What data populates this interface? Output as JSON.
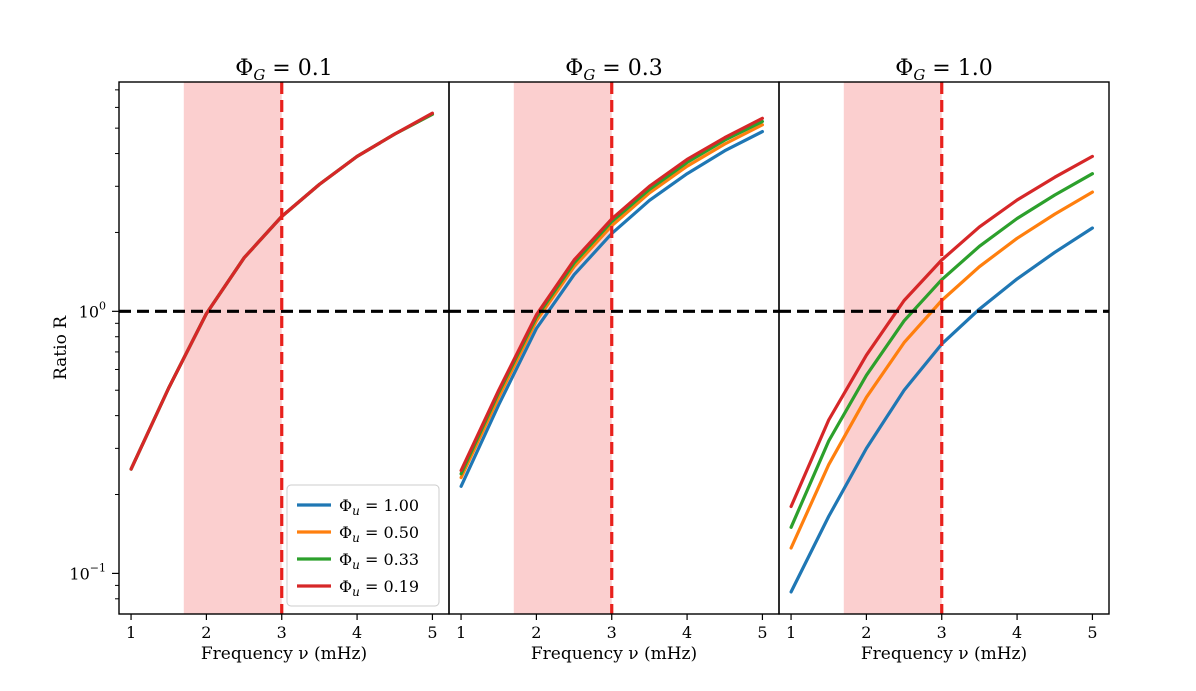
{
  "chart_data": {
    "type": "line",
    "ylabel": "Ratio R",
    "yscale": "log",
    "ylim": [
      0.07,
      7.5
    ],
    "y_ticks": [
      {
        "value": 1.0,
        "label": "10",
        "exp": "0"
      },
      {
        "value": 0.1,
        "label": "10",
        "exp": "−1"
      }
    ],
    "xlabel": "Frequency ν (mHz)",
    "xlim": [
      0.84,
      5.22
    ],
    "x_ticks": [
      1,
      2,
      3,
      4,
      5
    ],
    "x_tick_labels": [
      "1",
      "2",
      "3",
      "4",
      "5"
    ],
    "shaded_band": {
      "x_start": 1.7,
      "x_end": 3.0,
      "color": "#fbcfcf"
    },
    "vline": {
      "x": 3.0,
      "color": "#e8201c",
      "style": "dashed"
    },
    "hline": {
      "y": 1.0,
      "color": "#000000",
      "style": "dashed"
    },
    "legend": {
      "placement": "lower-right of first panel",
      "entries": [
        {
          "label": "Φu = 1.00",
          "sym": "Φ",
          "sub": "u",
          "val": " = 1.00",
          "color": "#1f77b4"
        },
        {
          "label": "Φu = 0.50",
          "sym": "Φ",
          "sub": "u",
          "val": " = 0.50",
          "color": "#ff7f0e"
        },
        {
          "label": "Φu = 0.33",
          "sym": "Φ",
          "sub": "u",
          "val": " = 0.33",
          "color": "#2ca02c"
        },
        {
          "label": "Φu = 0.19",
          "sym": "Φ",
          "sub": "u",
          "val": " = 0.19",
          "color": "#d62728"
        }
      ]
    },
    "x": [
      1.0,
      1.5,
      2.0,
      2.5,
      3.0,
      3.5,
      4.0,
      4.5,
      5.0
    ],
    "panels": [
      {
        "title": "ΦG = 0.1",
        "title_sym": "Φ",
        "title_sub": "G",
        "title_val": " = 0.1",
        "series": [
          {
            "color": "#1f77b4",
            "values": [
              0.25,
              0.51,
              0.98,
              1.6,
              2.3,
              3.05,
              3.9,
              4.75,
              5.65
            ]
          },
          {
            "color": "#ff7f0e",
            "values": [
              0.25,
              0.51,
              0.98,
              1.6,
              2.3,
              3.05,
              3.9,
              4.75,
              5.65
            ]
          },
          {
            "color": "#2ca02c",
            "values": [
              0.25,
              0.51,
              0.98,
              1.6,
              2.3,
              3.05,
              3.9,
              4.75,
              5.65
            ]
          },
          {
            "color": "#d62728",
            "values": [
              0.25,
              0.51,
              0.98,
              1.6,
              2.3,
              3.05,
              3.9,
              4.75,
              5.7
            ]
          }
        ]
      },
      {
        "title": "ΦG = 0.3",
        "title_sym": "Φ",
        "title_sub": "G",
        "title_val": " = 0.3",
        "series": [
          {
            "color": "#1f77b4",
            "values": [
              0.215,
              0.44,
              0.86,
              1.38,
              1.98,
              2.65,
              3.35,
              4.1,
              4.85
            ]
          },
          {
            "color": "#ff7f0e",
            "values": [
              0.232,
              0.47,
              0.92,
              1.48,
              2.12,
              2.83,
              3.58,
              4.35,
              5.15
            ]
          },
          {
            "color": "#2ca02c",
            "values": [
              0.24,
              0.49,
              0.95,
              1.53,
              2.2,
              2.92,
              3.7,
              4.5,
              5.3
            ]
          },
          {
            "color": "#d62728",
            "values": [
              0.247,
              0.5,
              0.97,
              1.57,
              2.25,
              3.0,
              3.8,
              4.6,
              5.45
            ]
          }
        ]
      },
      {
        "title": "ΦG = 1.0",
        "title_sym": "Φ",
        "title_sub": "G",
        "title_val": " = 1.0",
        "series": [
          {
            "color": "#1f77b4",
            "values": [
              0.085,
              0.165,
              0.3,
              0.5,
              0.75,
              1.02,
              1.33,
              1.68,
              2.08
            ]
          },
          {
            "color": "#ff7f0e",
            "values": [
              0.125,
              0.26,
              0.47,
              0.76,
              1.1,
              1.48,
              1.9,
              2.35,
              2.85
            ]
          },
          {
            "color": "#2ca02c",
            "values": [
              0.15,
              0.32,
              0.57,
              0.92,
              1.32,
              1.77,
              2.26,
              2.78,
              3.35
            ]
          },
          {
            "color": "#d62728",
            "values": [
              0.18,
              0.385,
              0.68,
              1.1,
              1.57,
              2.1,
              2.66,
              3.25,
              3.9
            ]
          }
        ]
      }
    ]
  }
}
